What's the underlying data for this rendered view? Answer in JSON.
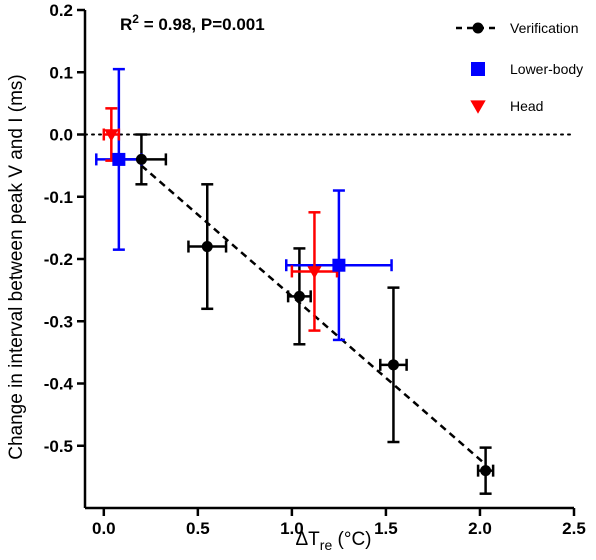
{
  "chart_data": {
    "type": "scatter",
    "annotation": {
      "main": "R",
      "sup": "2",
      "rest": " = 0.98, P=0.001"
    },
    "xlabel": {
      "main": "ΔT",
      "sub": "re",
      "rest": " (°C)"
    },
    "ylabel": "Change in interval between peak V and I (ms)",
    "xlim": [
      -0.1,
      2.5
    ],
    "ylim": [
      -0.6,
      0.2
    ],
    "x_ticks": [
      0.0,
      0.5,
      1.0,
      1.5,
      2.0,
      2.5
    ],
    "x_tick_labels": [
      "0.0",
      "0.5",
      "1.0",
      "1.5",
      "2.0",
      "2.5"
    ],
    "y_ticks": [
      0.2,
      0.1,
      0.0,
      -0.1,
      -0.2,
      -0.3,
      -0.4,
      -0.5
    ],
    "y_tick_labels": [
      "0.2",
      "0.1",
      "0.0",
      "-0.1",
      "-0.2",
      "-0.3",
      "-0.4",
      "-0.5"
    ],
    "reference_line": {
      "y": 0.0,
      "style": "dotted"
    },
    "series": [
      {
        "name": "Verification",
        "color": "#000000",
        "marker": "circle",
        "points": [
          {
            "x": 0.2,
            "y": -0.04,
            "xerr": 0.13,
            "yerr": 0.04
          },
          {
            "x": 0.55,
            "y": -0.18,
            "xerr": 0.1,
            "yerr": 0.1
          },
          {
            "x": 1.04,
            "y": -0.26,
            "xerr": 0.06,
            "yerr": 0.077
          },
          {
            "x": 1.54,
            "y": -0.37,
            "xerr": 0.07,
            "yerr": 0.124
          },
          {
            "x": 2.03,
            "y": -0.54,
            "xerr": 0.04,
            "yerr": 0.037
          }
        ]
      },
      {
        "name": "Lower-body",
        "color": "#0000ff",
        "marker": "square",
        "points": [
          {
            "x": 0.08,
            "y": -0.04,
            "xerr": 0.12,
            "yerr": 0.145
          },
          {
            "x": 1.25,
            "y": -0.21,
            "xerr": 0.28,
            "yerr": 0.12
          }
        ]
      },
      {
        "name": "Head",
        "color": "#ff0000",
        "marker": "triangle-down",
        "points": [
          {
            "x": 0.04,
            "y": 0.0,
            "xerr": 0.04,
            "yerr": 0.042
          },
          {
            "x": 1.12,
            "y": -0.22,
            "xerr": 0.12,
            "yerr": 0.095
          }
        ]
      }
    ],
    "trendline": {
      "x": [
        0.2,
        2.03
      ],
      "y": [
        -0.05,
        -0.53
      ],
      "style": "dashed",
      "color": "#000000"
    },
    "legend_position": "top-right"
  }
}
